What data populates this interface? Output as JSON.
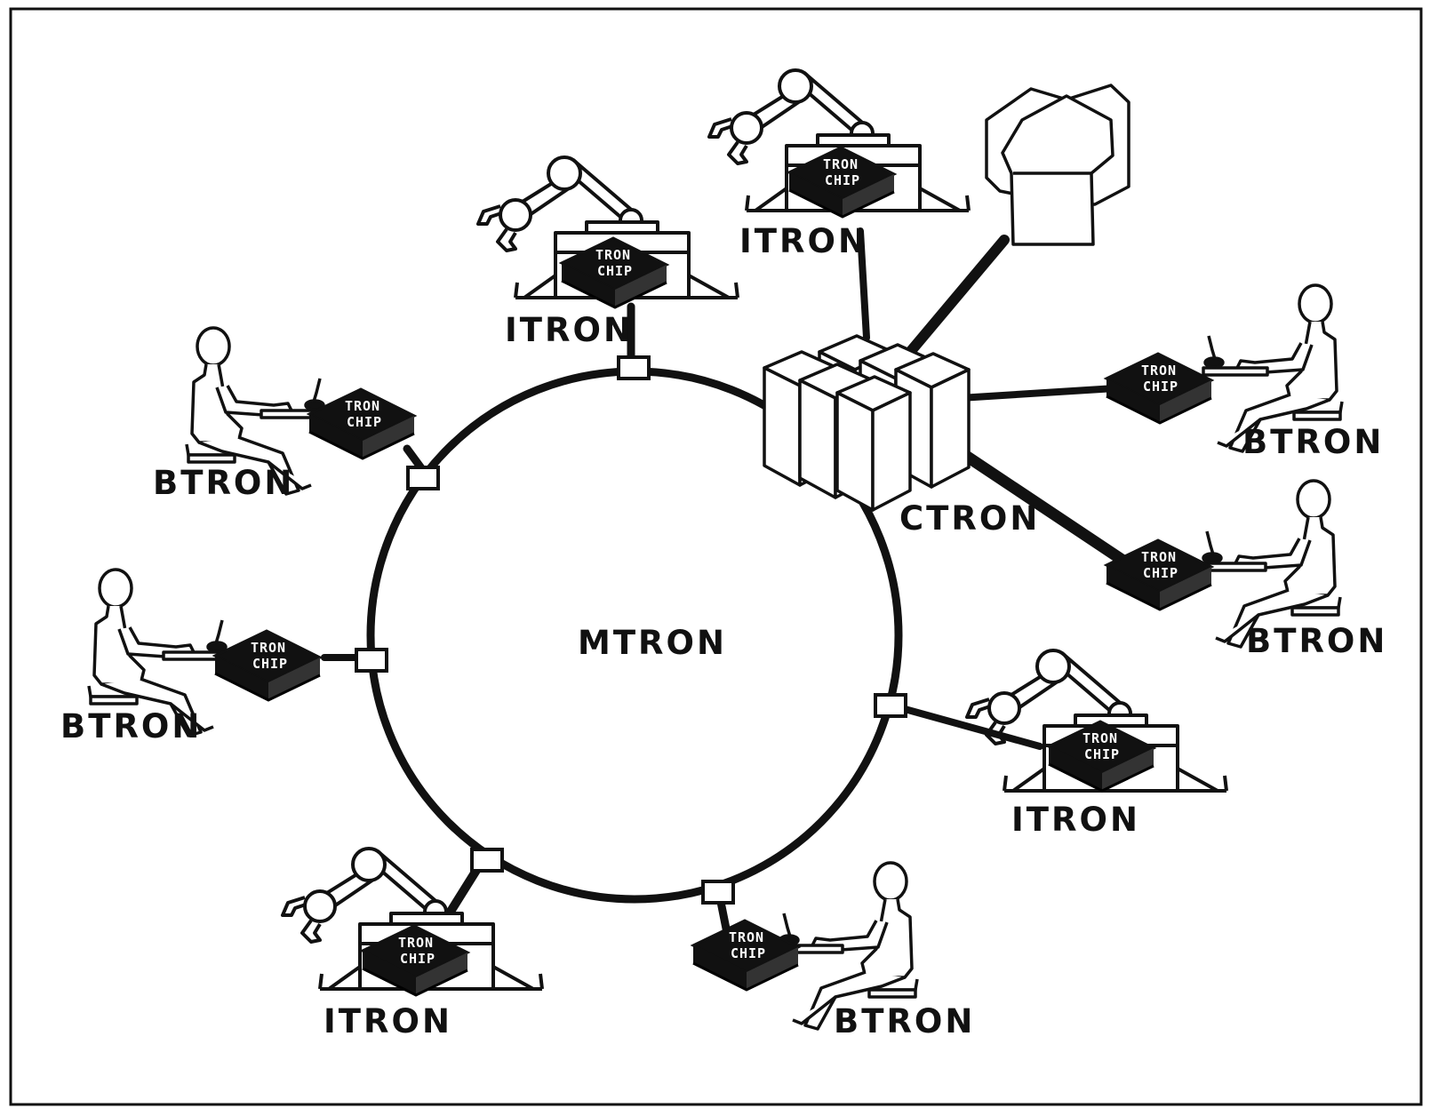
{
  "diagram": {
    "ring_label": "MTRON",
    "chip_line1": "TRON",
    "chip_line2": "CHIP",
    "nodes": [
      {
        "id": "itron-top",
        "kind": "robot",
        "label": "ITRON"
      },
      {
        "id": "itron-top-right",
        "kind": "robot",
        "label": "ITRON"
      },
      {
        "id": "btron-left-upper",
        "kind": "workstation",
        "label": "BTRON"
      },
      {
        "id": "btron-left-lower",
        "kind": "workstation",
        "label": "BTRON"
      },
      {
        "id": "btron-right-upper",
        "kind": "workstation",
        "label": "BTRON"
      },
      {
        "id": "btron-right-lower",
        "kind": "workstation",
        "label": "BTRON"
      },
      {
        "id": "itron-right",
        "kind": "robot",
        "label": "ITRON"
      },
      {
        "id": "itron-bottom-left",
        "kind": "robot",
        "label": "ITRON"
      },
      {
        "id": "btron-bottom",
        "kind": "workstation",
        "label": "BTRON"
      },
      {
        "id": "ctron",
        "kind": "server",
        "label": "CTRON"
      }
    ]
  }
}
